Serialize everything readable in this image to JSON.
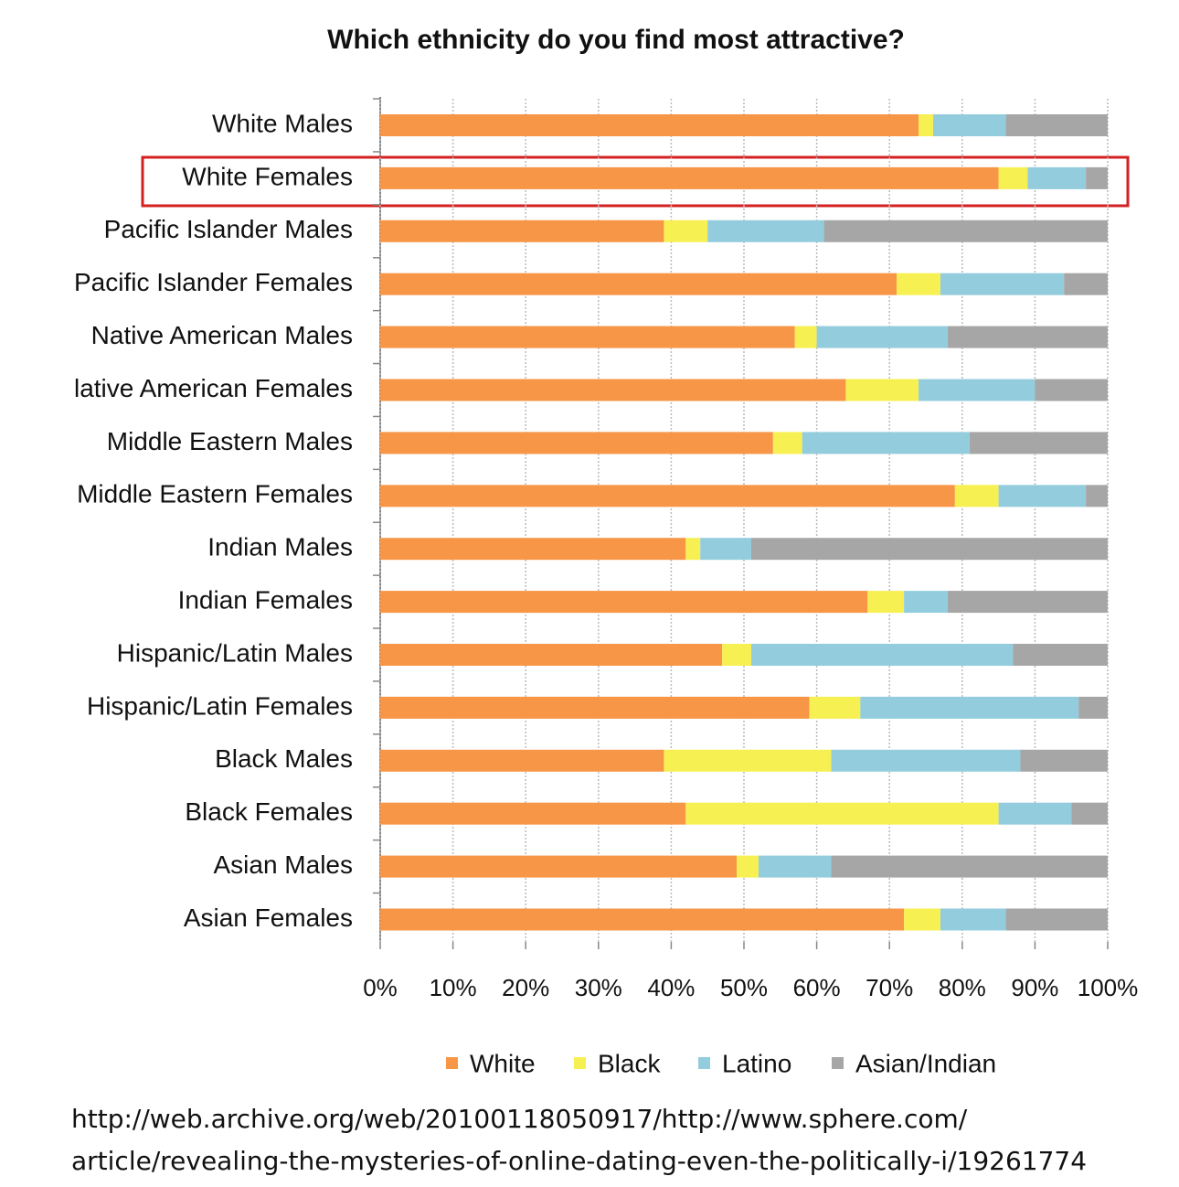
{
  "chart_data": {
    "type": "stacked-bar-horizontal",
    "title": "Which ethnicity do you find most attractive?",
    "categories": [
      "White Males",
      "White Females",
      "Pacific Islander Males",
      "Pacific Islander Females",
      "Native American Males",
      "lative American Females",
      "Middle Eastern Males",
      "Middle Eastern Females",
      "Indian Males",
      "Indian Females",
      "Hispanic/Latin Males",
      "Hispanic/Latin Females",
      "Black Males",
      "Black Females",
      "Asian Males",
      "Asian Females"
    ],
    "series": [
      {
        "name": "White",
        "color": "#f79646",
        "values": [
          74,
          85,
          39,
          71,
          57,
          64,
          54,
          79,
          42,
          67,
          47,
          59,
          39,
          42,
          49,
          72
        ]
      },
      {
        "name": "Black",
        "color": "#f7f052",
        "values": [
          2,
          4,
          6,
          6,
          3,
          10,
          4,
          6,
          2,
          5,
          4,
          7,
          23,
          43,
          3,
          5
        ]
      },
      {
        "name": "Latino",
        "color": "#93cddd",
        "values": [
          10,
          8,
          16,
          17,
          18,
          16,
          23,
          12,
          7,
          6,
          36,
          30,
          26,
          10,
          10,
          9
        ]
      },
      {
        "name": "Asian/Indian",
        "color": "#a6a6a6",
        "values": [
          14,
          3,
          39,
          6,
          22,
          10,
          19,
          3,
          49,
          22,
          13,
          4,
          12,
          5,
          38,
          14
        ]
      }
    ],
    "xlim": [
      0,
      100
    ],
    "xticks": [
      {
        "value": 0,
        "label": "0%"
      },
      {
        "value": 10,
        "label": "10%"
      },
      {
        "value": 20,
        "label": "20%"
      },
      {
        "value": 30,
        "label": "30%"
      },
      {
        "value": 40,
        "label": "40%"
      },
      {
        "value": 50,
        "label": "50%"
      },
      {
        "value": 60,
        "label": "60%"
      },
      {
        "value": 70,
        "label": "70%"
      },
      {
        "value": 80,
        "label": "80%"
      },
      {
        "value": 90,
        "label": "90%"
      },
      {
        "value": 100,
        "label": "100%"
      }
    ],
    "grid": true,
    "legend": "bottom",
    "source_lines": [
      "http://web.archive.org/web/20100118050917/http://www.sphere.com/",
      "article/revealing-the-mysteries-of-online-dating-even-the-politically-i/19261774"
    ]
  }
}
